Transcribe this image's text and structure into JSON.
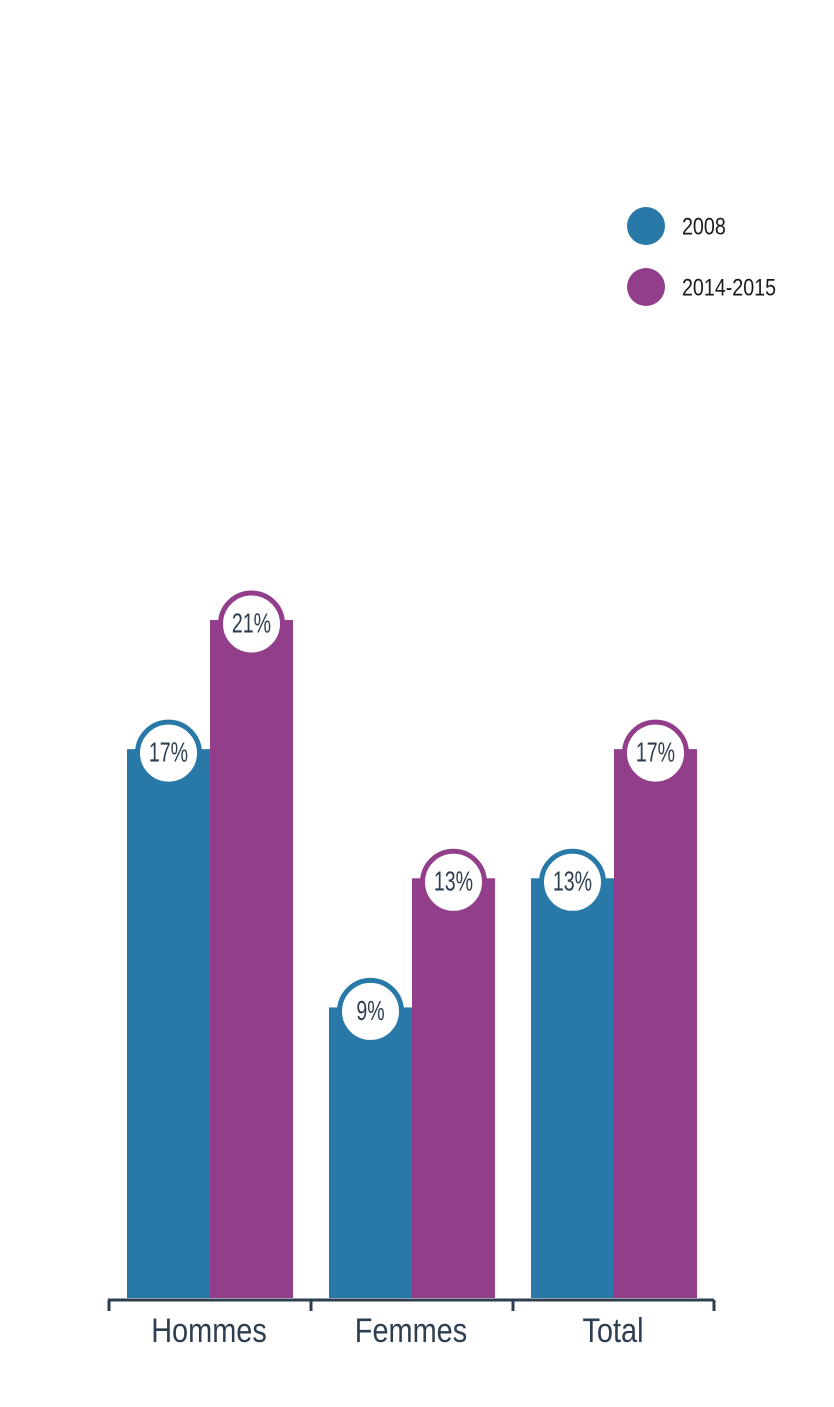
{
  "chart_data": {
    "type": "bar",
    "categories": [
      "Hommes",
      "Femmes",
      "Total"
    ],
    "series": [
      {
        "name": "2008",
        "color": "#2878a8",
        "values": [
          17,
          9,
          13
        ],
        "value_labels": [
          "17%",
          "9%",
          "13%"
        ]
      },
      {
        "name": "2014-2015",
        "color": "#933e8a",
        "values": [
          21,
          13,
          17
        ],
        "value_labels": [
          "21%",
          "13%",
          "17%"
        ]
      }
    ]
  }
}
